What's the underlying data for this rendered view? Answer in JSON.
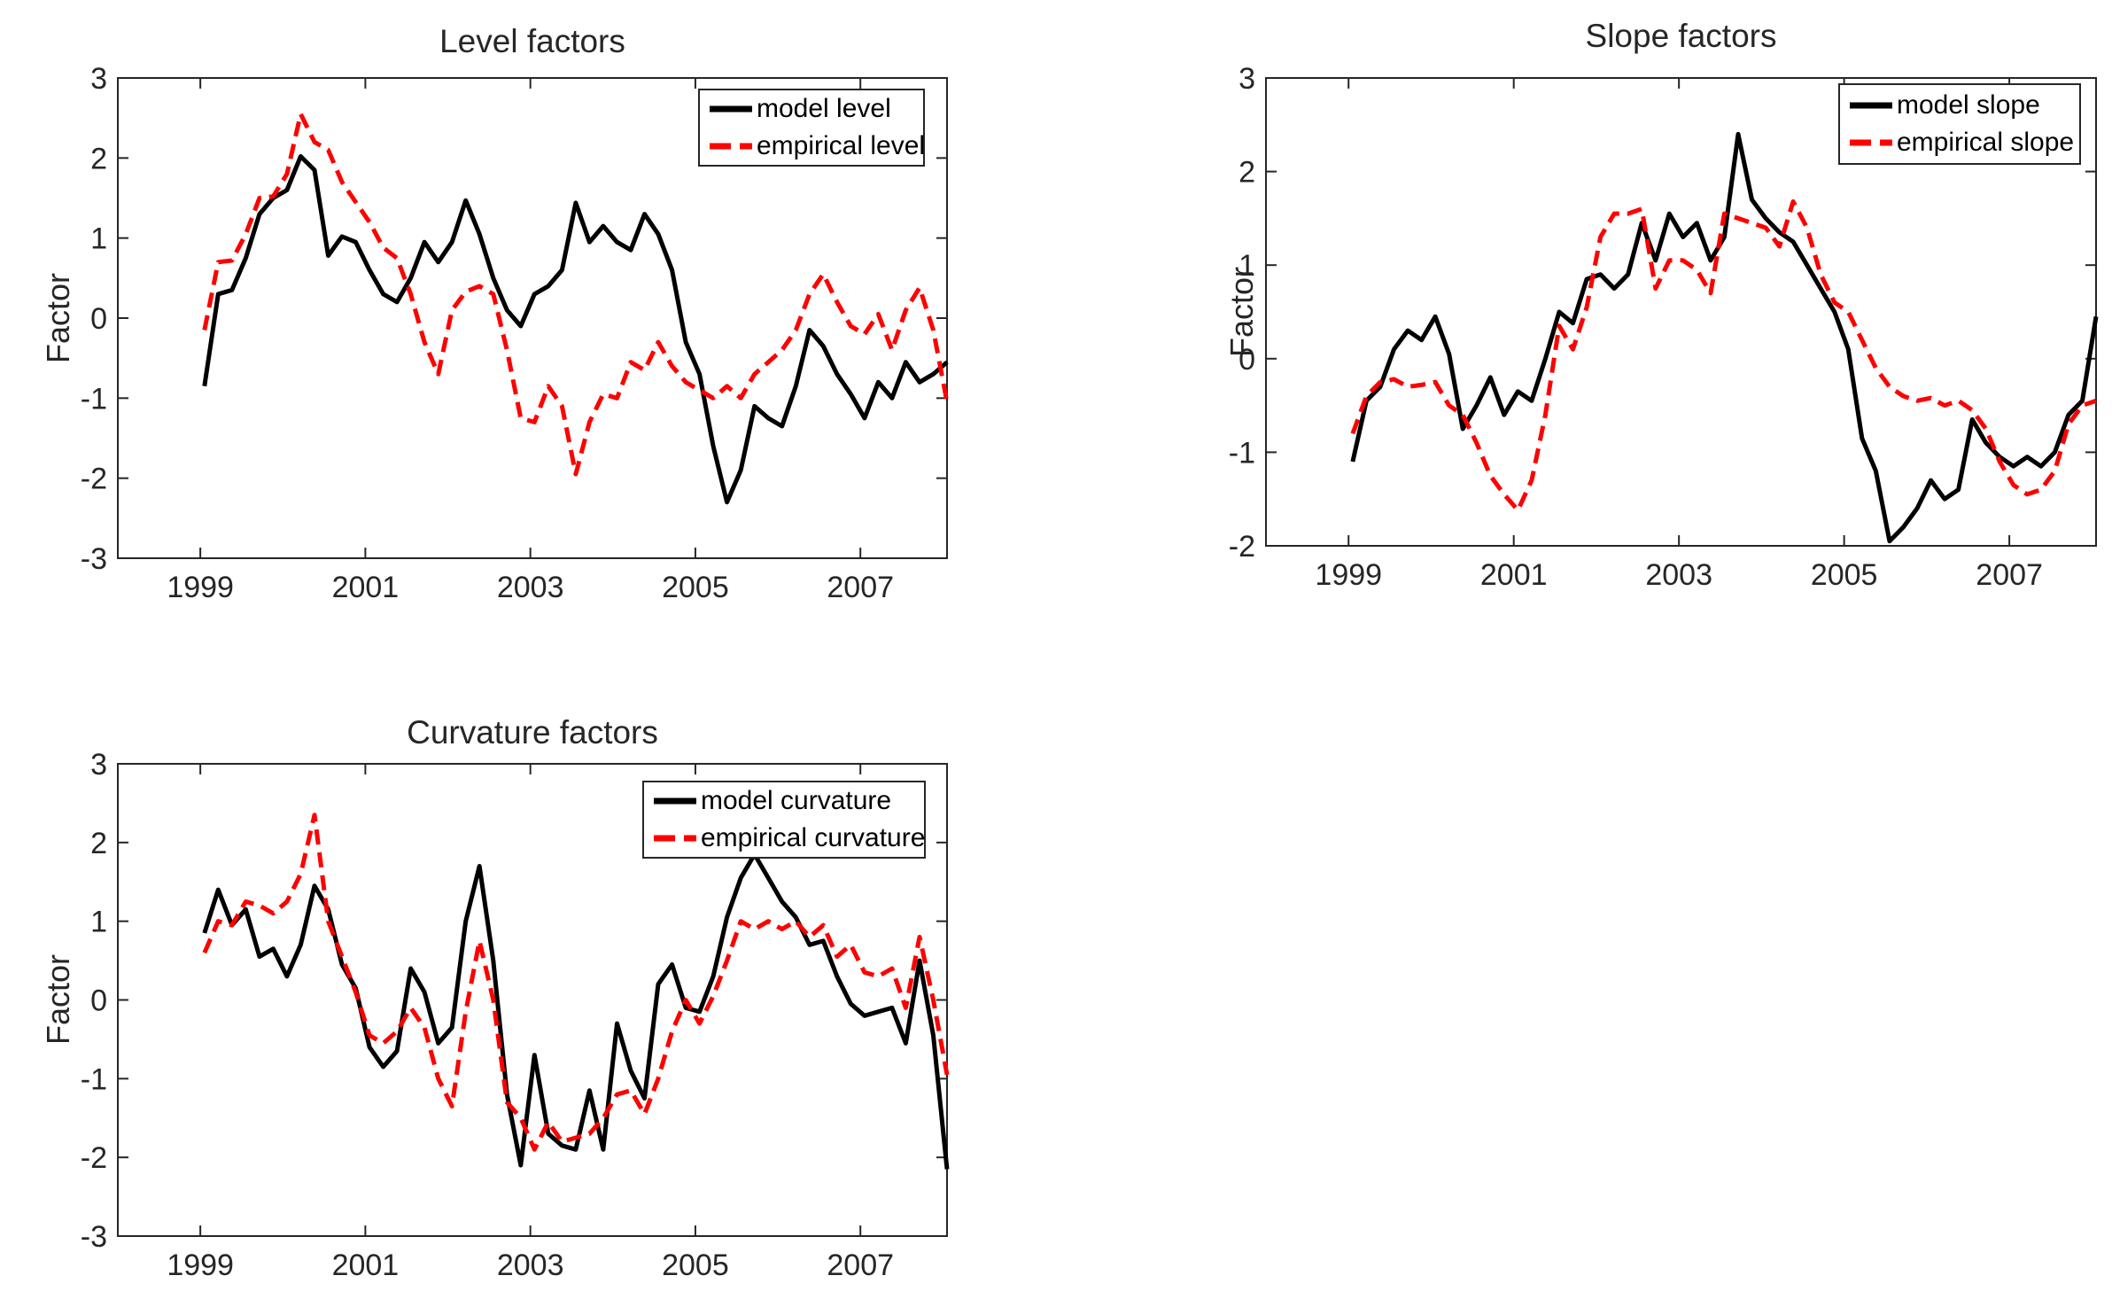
{
  "figure": {
    "background": "#ffffff",
    "axis_color": "#262626",
    "model_color": "#000000",
    "empirical_color": "#ff0000"
  },
  "chart_data": [
    {
      "type": "line",
      "title": "Level factors",
      "xlabel": "",
      "ylabel": "Factor",
      "xlim": [
        1998.0,
        2008.05
      ],
      "ylim": [
        -3,
        3
      ],
      "x_ticks": [
        1999,
        2001,
        2003,
        2005,
        2007
      ],
      "y_ticks": [
        -3,
        -2,
        -1,
        0,
        1,
        2,
        3
      ],
      "grid": false,
      "legend_position": "top-right",
      "x": {
        "start": 1999.05,
        "step": 0.166667
      },
      "series": [
        {
          "name": "model level",
          "color": "#000000",
          "line": "solid",
          "values": [
            -0.85,
            0.3,
            0.35,
            0.75,
            1.3,
            1.5,
            1.6,
            2.02,
            1.85,
            0.78,
            1.02,
            0.95,
            0.6,
            0.3,
            0.2,
            0.5,
            0.95,
            0.7,
            0.95,
            1.47,
            1.05,
            0.5,
            0.1,
            -0.1,
            0.3,
            0.4,
            0.6,
            1.44,
            0.95,
            1.15,
            0.95,
            0.85,
            1.3,
            1.05,
            0.6,
            -0.3,
            -0.7,
            -1.6,
            -2.3,
            -1.9,
            -1.1,
            -1.25,
            -1.35,
            -0.85,
            -0.15,
            -0.35,
            -0.7,
            -0.95,
            -1.25,
            -0.8,
            -1.0,
            -0.55,
            -0.8,
            -0.7,
            -0.55
          ]
        },
        {
          "name": "empirical level",
          "color": "#ff0000",
          "line": "dashed",
          "values": [
            -0.15,
            0.7,
            0.72,
            1.05,
            1.5,
            1.52,
            1.8,
            2.55,
            2.2,
            2.1,
            1.7,
            1.45,
            1.2,
            0.88,
            0.75,
            0.3,
            -0.3,
            -0.7,
            0.1,
            0.33,
            0.4,
            0.3,
            -0.4,
            -1.25,
            -1.3,
            -0.85,
            -1.1,
            -1.95,
            -1.3,
            -0.95,
            -1.0,
            -0.55,
            -0.65,
            -0.3,
            -0.6,
            -0.8,
            -0.9,
            -1.0,
            -0.85,
            -1.0,
            -0.7,
            -0.55,
            -0.4,
            -0.15,
            0.3,
            0.55,
            0.2,
            -0.1,
            -0.2,
            0.05,
            -0.4,
            0.1,
            0.38,
            -0.15,
            -1.05
          ]
        }
      ]
    },
    {
      "type": "line",
      "title": "Slope factors",
      "xlabel": "",
      "ylabel": "Factor",
      "xlim": [
        1998.0,
        2008.05
      ],
      "ylim": [
        -2,
        3
      ],
      "x_ticks": [
        1999,
        2001,
        2003,
        2005,
        2007
      ],
      "y_ticks": [
        -2,
        -1,
        0,
        1,
        2,
        3
      ],
      "grid": false,
      "legend_position": "top-right",
      "x": {
        "start": 1999.05,
        "step": 0.166667
      },
      "series": [
        {
          "name": "model slope",
          "color": "#000000",
          "line": "solid",
          "values": [
            -1.1,
            -0.45,
            -0.3,
            0.1,
            0.3,
            0.2,
            0.45,
            0.05,
            -0.75,
            -0.5,
            -0.2,
            -0.6,
            -0.35,
            -0.45,
            0.0,
            0.5,
            0.38,
            0.85,
            0.9,
            0.75,
            0.9,
            1.45,
            1.05,
            1.55,
            1.3,
            1.45,
            1.05,
            1.3,
            2.4,
            1.7,
            1.5,
            1.35,
            1.25,
            1.0,
            0.75,
            0.5,
            0.1,
            -0.85,
            -1.2,
            -1.95,
            -1.8,
            -1.6,
            -1.3,
            -1.5,
            -1.4,
            -0.65,
            -0.9,
            -1.05,
            -1.15,
            -1.05,
            -1.15,
            -1.0,
            -0.6,
            -0.45,
            0.45
          ]
        },
        {
          "name": "empirical slope",
          "color": "#ff0000",
          "line": "dashed",
          "values": [
            -0.8,
            -0.4,
            -0.25,
            -0.22,
            -0.3,
            -0.28,
            -0.25,
            -0.5,
            -0.6,
            -0.9,
            -1.25,
            -1.45,
            -1.62,
            -1.3,
            -0.6,
            0.35,
            0.1,
            0.55,
            1.3,
            1.55,
            1.55,
            1.6,
            0.75,
            1.05,
            1.05,
            0.95,
            0.7,
            1.55,
            1.5,
            1.45,
            1.4,
            1.2,
            1.68,
            1.4,
            0.9,
            0.6,
            0.5,
            0.2,
            -0.1,
            -0.3,
            -0.4,
            -0.45,
            -0.42,
            -0.5,
            -0.45,
            -0.55,
            -0.75,
            -1.1,
            -1.35,
            -1.45,
            -1.4,
            -1.2,
            -0.7,
            -0.5,
            -0.45
          ]
        }
      ]
    },
    {
      "type": "line",
      "title": "Curvature factors",
      "xlabel": "",
      "ylabel": "Factor",
      "xlim": [
        1998.0,
        2008.05
      ],
      "ylim": [
        -3,
        3
      ],
      "x_ticks": [
        1999,
        2001,
        2003,
        2005,
        2007
      ],
      "y_ticks": [
        -3,
        -2,
        -1,
        0,
        1,
        2,
        3
      ],
      "grid": false,
      "legend_position": "top-right",
      "x": {
        "start": 1999.05,
        "step": 0.166667
      },
      "series": [
        {
          "name": "model curvature",
          "color": "#000000",
          "line": "solid",
          "values": [
            0.85,
            1.4,
            0.95,
            1.15,
            0.55,
            0.65,
            0.3,
            0.7,
            1.45,
            1.15,
            0.45,
            0.15,
            -0.6,
            -0.85,
            -0.65,
            0.4,
            0.1,
            -0.55,
            -0.35,
            1.0,
            1.7,
            0.5,
            -1.2,
            -2.1,
            -0.7,
            -1.7,
            -1.85,
            -1.9,
            -1.15,
            -1.9,
            -0.3,
            -0.9,
            -1.25,
            0.2,
            0.45,
            -0.1,
            -0.15,
            0.3,
            1.05,
            1.55,
            1.85,
            1.55,
            1.25,
            1.05,
            0.7,
            0.75,
            0.3,
            -0.05,
            -0.2,
            -0.15,
            -0.1,
            -0.55,
            0.5,
            -0.45,
            -2.15
          ]
        },
        {
          "name": "empirical curvature",
          "color": "#ff0000",
          "line": "dashed",
          "values": [
            0.6,
            1.0,
            0.95,
            1.25,
            1.2,
            1.1,
            1.25,
            1.6,
            2.35,
            1.0,
            0.55,
            0.1,
            -0.45,
            -0.55,
            -0.4,
            -0.1,
            -0.35,
            -1.0,
            -1.35,
            -0.15,
            0.75,
            0.0,
            -1.3,
            -1.5,
            -1.9,
            -1.55,
            -1.8,
            -1.75,
            -1.7,
            -1.5,
            -1.2,
            -1.15,
            -1.45,
            -1.0,
            -0.4,
            0.0,
            -0.3,
            0.05,
            0.5,
            1.0,
            0.9,
            1.0,
            0.9,
            1.0,
            0.8,
            0.95,
            0.55,
            0.7,
            0.35,
            0.3,
            0.4,
            -0.1,
            0.8,
            0.0,
            -0.95
          ]
        }
      ]
    }
  ]
}
